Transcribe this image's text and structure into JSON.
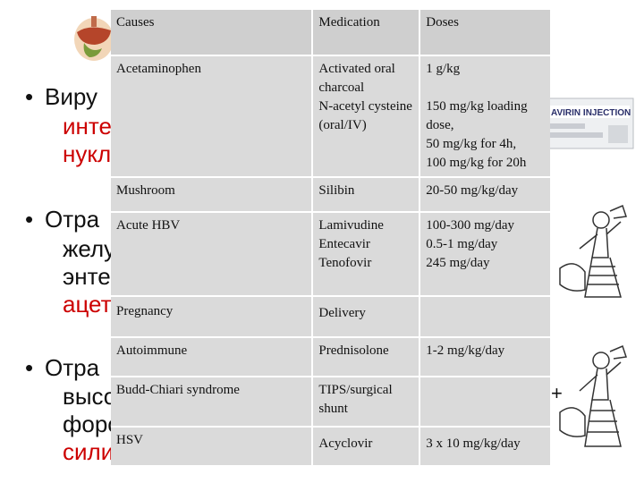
{
  "table": {
    "headers": [
      "Causes",
      "Medication",
      "Doses"
    ],
    "rows": [
      {
        "cause": "Acetaminophen",
        "medication": "Activated oral charcoal\nN-acetyl cysteine (oral/IV)",
        "dose": "1 g/kg\n\n150 mg/kg loading dose,\n50 mg/kg for 4h,\n100 mg/kg for 20h"
      },
      {
        "cause": "Mushroom",
        "medication": "Silibin",
        "dose": "20-50 mg/kg/day"
      },
      {
        "cause": "Acute HBV",
        "medication": "Lamivudine\nEntecavir\nTenofovir",
        "dose": "100-300 mg/day\n0.5-1 mg/day\n245 mg/day"
      },
      {
        "cause": "Pregnancy",
        "medication": "Delivery",
        "dose": ""
      },
      {
        "cause": "Autoimmune",
        "medication": "Prednisolone",
        "dose": "1-2 mg/kg/day"
      },
      {
        "cause": "Budd-Chiari syndrome",
        "medication": "TIPS/surgical shunt",
        "dose": ""
      },
      {
        "cause": "HSV",
        "medication": "Acyclovir",
        "dose": "3 x 10 mg/kg/day"
      }
    ]
  },
  "background_text": {
    "b1_line1": "Виру",
    "b1_line2": "инте",
    "b1_line3": "нукл",
    "b2_line1": "Отра",
    "b2_line2": "желу",
    "b2_line3": "энте",
    "b2_line4": "ацет",
    "b3_line1": "Отра",
    "b3_line2": "высо",
    "b3_line3": "форс",
    "b3_line4": "сили",
    "bullet_char": "•",
    "edge_char": "+"
  },
  "images": {
    "vial_label": "AVIRIN INJECTION",
    "organ_icon": "liver-organs-icon",
    "figure_icon": "nurse-figure-icon"
  },
  "colors": {
    "table_cell": "#dadada",
    "highlight_text": "#cc0000"
  }
}
